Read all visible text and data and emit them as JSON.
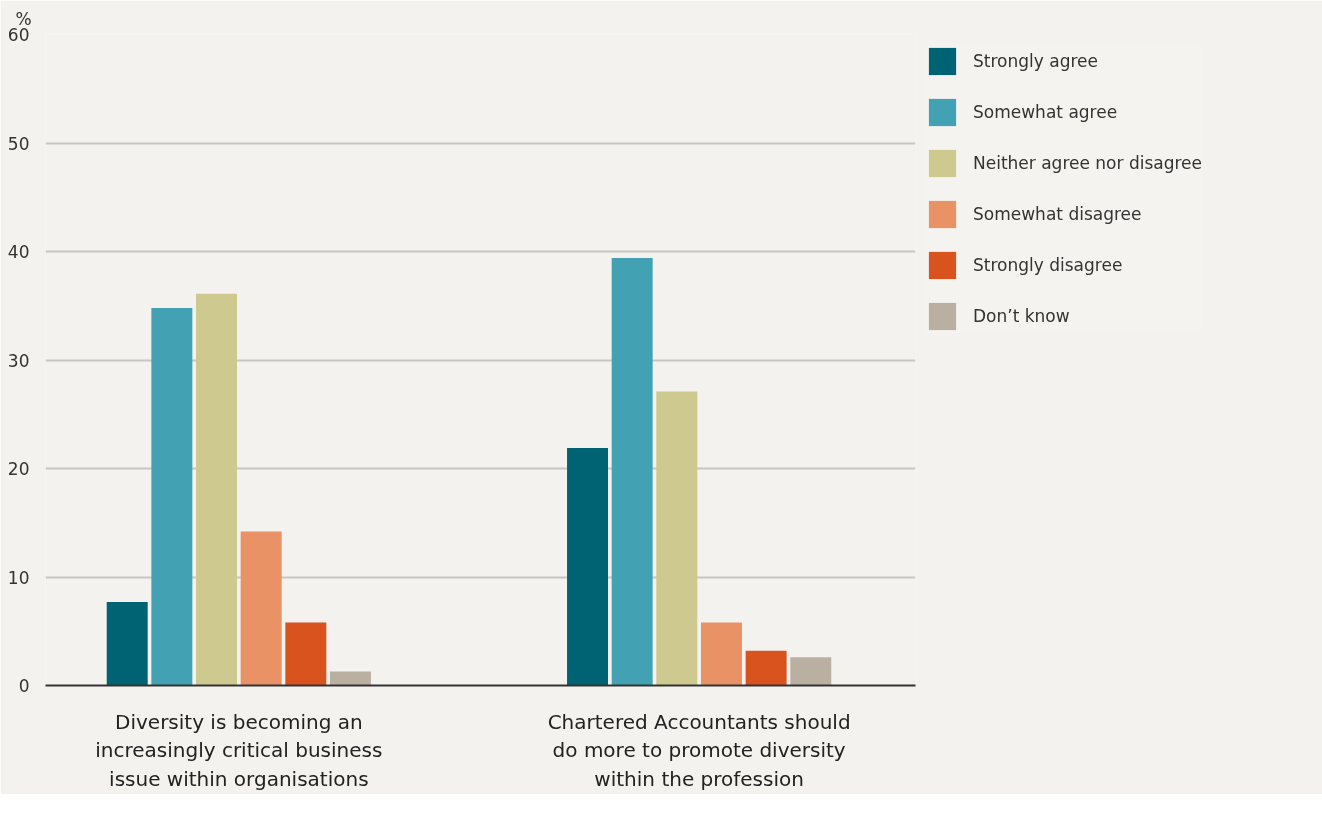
{
  "chart_data": {
    "type": "bar",
    "ylabel": "%",
    "categories": [
      "Diversity is becoming an increasingly critical business issue within organisations",
      "Chartered Accountants should do more to promote diversity within the profession"
    ],
    "series": [
      {
        "name": "Strongly agree",
        "color": "#006373",
        "values": [
          7.7,
          21.9
        ]
      },
      {
        "name": "Somewhat agree",
        "color": "#42a2b3",
        "values": [
          34.8,
          39.4
        ]
      },
      {
        "name": "Neither agree nor disagree",
        "color": "#cdc98f",
        "values": [
          36.1,
          27.1
        ]
      },
      {
        "name": "Somewhat disagree",
        "color": "#e89266",
        "values": [
          14.2,
          5.8
        ]
      },
      {
        "name": "Strongly disagree",
        "color": "#d9531e",
        "values": [
          5.8,
          3.2
        ]
      },
      {
        "name": "Don’t know",
        "color": "#b9b0a2",
        "values": [
          1.3,
          2.6
        ]
      }
    ],
    "ylim": [
      0,
      60
    ],
    "yticks": [
      0,
      10,
      20,
      30,
      40,
      50,
      60
    ],
    "grid": "y",
    "legend": "top right"
  }
}
